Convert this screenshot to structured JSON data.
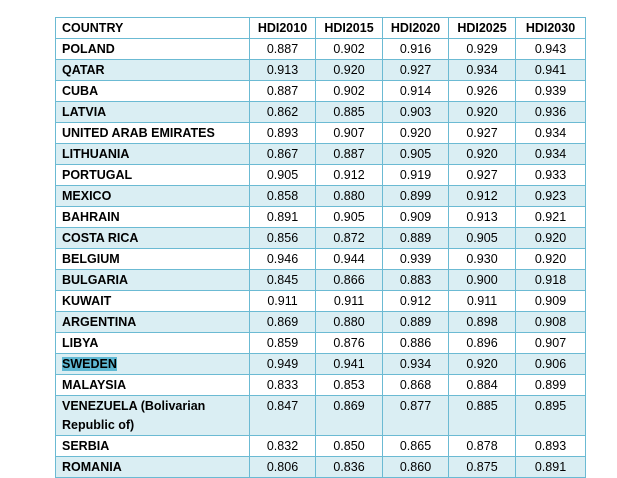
{
  "table": {
    "header": [
      "COUNTRY",
      "HDI2010",
      "HDI2015",
      "HDI2020",
      "HDI2025",
      "HDI2030"
    ],
    "rows": [
      [
        "POLAND",
        "0.887",
        "0.902",
        "0.916",
        "0.929",
        "0.943"
      ],
      [
        "QATAR",
        "0.913",
        "0.920",
        "0.927",
        "0.934",
        "0.941"
      ],
      [
        "CUBA",
        "0.887",
        "0.902",
        "0.914",
        "0.926",
        "0.939"
      ],
      [
        "LATVIA",
        "0.862",
        "0.885",
        "0.903",
        "0.920",
        "0.936"
      ],
      [
        "UNITED ARAB EMIRATES",
        "0.893",
        "0.907",
        "0.920",
        "0.927",
        "0.934"
      ],
      [
        "LITHUANIA",
        "0.867",
        "0.887",
        "0.905",
        "0.920",
        "0.934"
      ],
      [
        "PORTUGAL",
        "0.905",
        "0.912",
        "0.919",
        "0.927",
        "0.933"
      ],
      [
        "MEXICO",
        "0.858",
        "0.880",
        "0.899",
        "0.912",
        "0.923"
      ],
      [
        "BAHRAIN",
        "0.891",
        "0.905",
        "0.909",
        "0.913",
        "0.921"
      ],
      [
        "COSTA RICA",
        "0.856",
        "0.872",
        "0.889",
        "0.905",
        "0.920"
      ],
      [
        "BELGIUM",
        "0.946",
        "0.944",
        "0.939",
        "0.930",
        "0.920"
      ],
      [
        "BULGARIA",
        "0.845",
        "0.866",
        "0.883",
        "0.900",
        "0.918"
      ],
      [
        "KUWAIT",
        "0.911",
        "0.911",
        "0.912",
        "0.911",
        "0.909"
      ],
      [
        "ARGENTINA",
        "0.869",
        "0.880",
        "0.889",
        "0.898",
        "0.908"
      ],
      [
        "LIBYA",
        "0.859",
        "0.876",
        "0.886",
        "0.896",
        "0.907"
      ],
      [
        "SWEDEN",
        "0.949",
        "0.941",
        "0.934",
        "0.920",
        "0.906"
      ],
      [
        "MALAYSIA",
        "0.833",
        "0.853",
        "0.868",
        "0.884",
        "0.899"
      ],
      [
        "VENEZUELA (Bolivarian Republic of)",
        "0.847",
        "0.869",
        "0.877",
        "0.885",
        "0.895"
      ],
      [
        "SERBIA",
        "0.832",
        "0.850",
        "0.865",
        "0.878",
        "0.893"
      ],
      [
        "ROMANIA",
        "0.806",
        "0.836",
        "0.860",
        "0.875",
        "0.891"
      ]
    ]
  }
}
